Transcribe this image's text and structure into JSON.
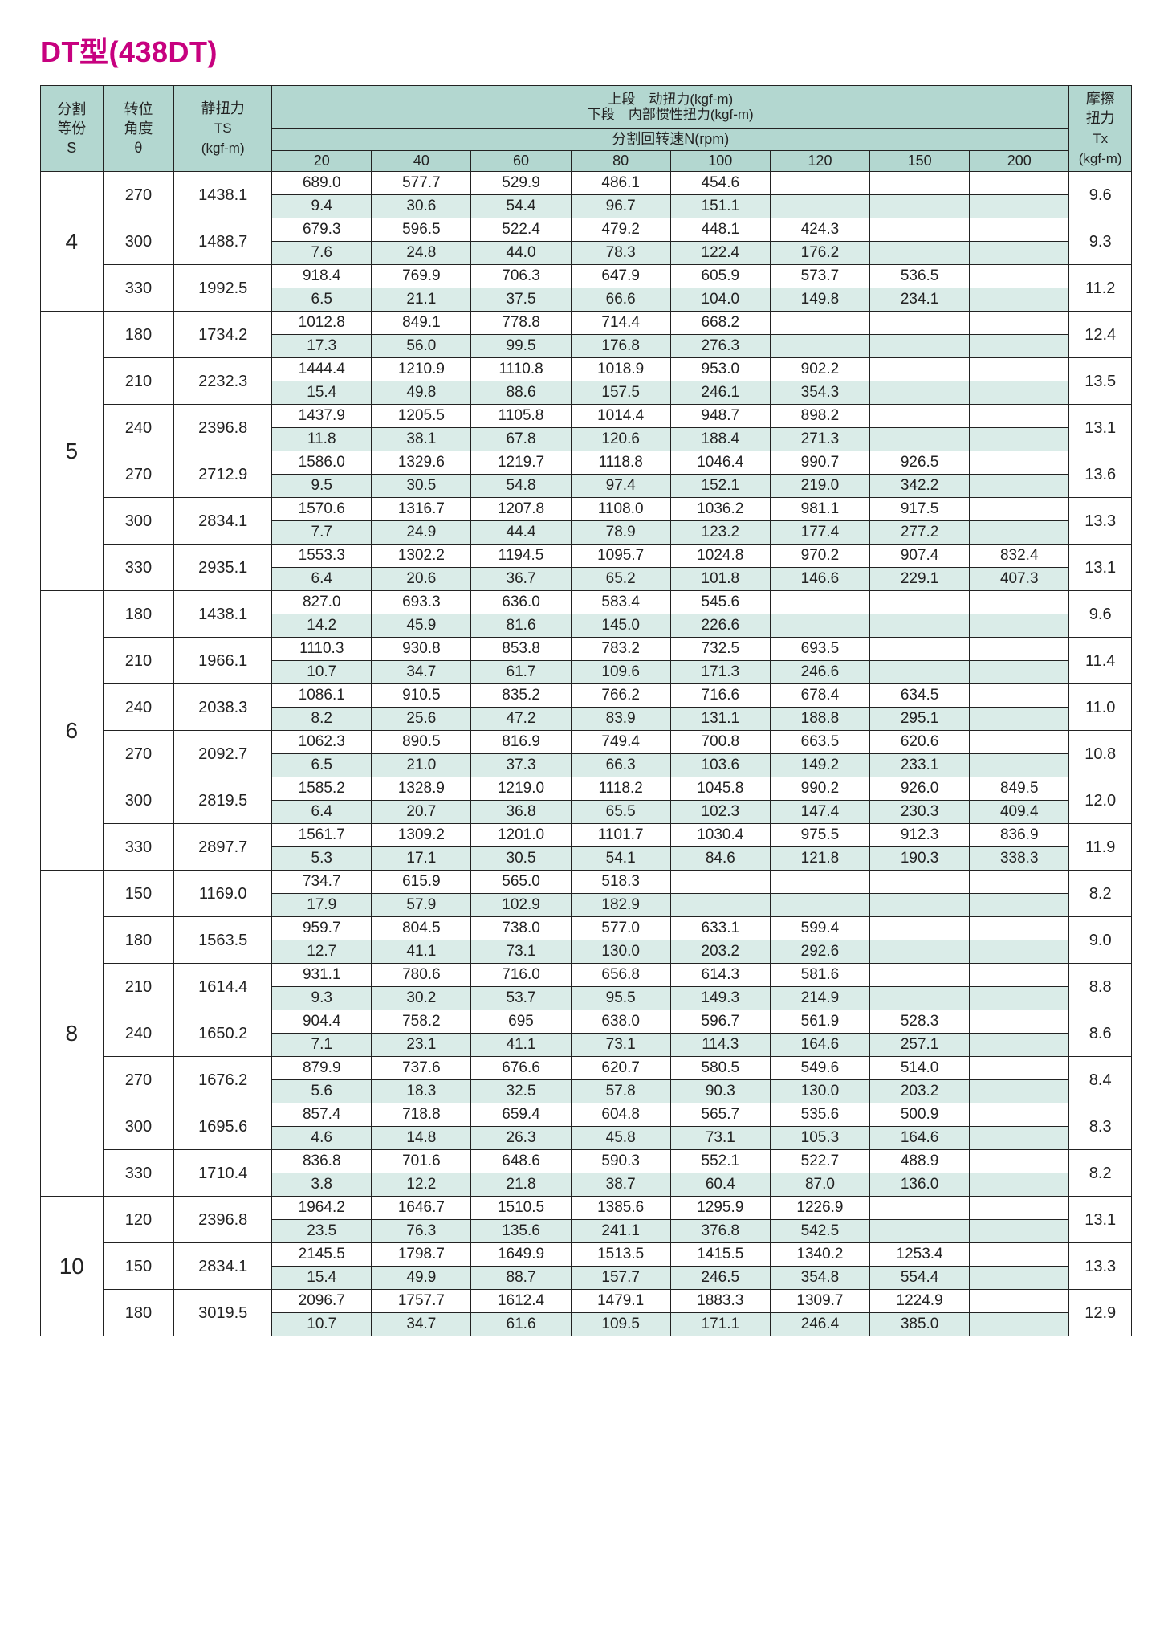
{
  "title": "DT型(438DT)",
  "colors": {
    "header_bg": "#b3d7d0",
    "mint_bg": "#daece8",
    "white_bg": "#ffffff",
    "border": "#222222",
    "title": "#c7017f"
  },
  "header": {
    "s_label_1": "分割",
    "s_label_2": "等份",
    "s_label_3": "S",
    "theta_label_1": "转位",
    "theta_label_2": "角度",
    "theta_label_3": "θ",
    "ts_label_1": "静扭力",
    "ts_label_2": "TS",
    "ts_label_3": "(kgf-m)",
    "top_row_upper": "上段　动扭力(kgf-m)",
    "top_row_lower": "下段　内部惯性扭力(kgf-m)",
    "rpm_label": "分割回转速N(rpm)",
    "rpm_cols": [
      "20",
      "40",
      "60",
      "80",
      "100",
      "120",
      "150",
      "200"
    ],
    "tx_label_1": "摩擦",
    "tx_label_2": "扭力",
    "tx_label_3": "Tx",
    "tx_label_4": "(kgf-m)"
  },
  "groups": [
    {
      "s": "4",
      "rows": [
        {
          "theta": "270",
          "ts": "1438.1",
          "tx": "9.6",
          "upper": [
            "689.0",
            "577.7",
            "529.9",
            "486.1",
            "454.6",
            "",
            "",
            ""
          ],
          "lower": [
            "9.4",
            "30.6",
            "54.4",
            "96.7",
            "151.1",
            "",
            "",
            ""
          ]
        },
        {
          "theta": "300",
          "ts": "1488.7",
          "tx": "9.3",
          "upper": [
            "679.3",
            "596.5",
            "522.4",
            "479.2",
            "448.1",
            "424.3",
            "",
            ""
          ],
          "lower": [
            "7.6",
            "24.8",
            "44.0",
            "78.3",
            "122.4",
            "176.2",
            "",
            ""
          ]
        },
        {
          "theta": "330",
          "ts": "1992.5",
          "tx": "11.2",
          "upper": [
            "918.4",
            "769.9",
            "706.3",
            "647.9",
            "605.9",
            "573.7",
            "536.5",
            ""
          ],
          "lower": [
            "6.5",
            "21.1",
            "37.5",
            "66.6",
            "104.0",
            "149.8",
            "234.1",
            ""
          ]
        }
      ]
    },
    {
      "s": "5",
      "rows": [
        {
          "theta": "180",
          "ts": "1734.2",
          "tx": "12.4",
          "upper": [
            "1012.8",
            "849.1",
            "778.8",
            "714.4",
            "668.2",
            "",
            "",
            ""
          ],
          "lower": [
            "17.3",
            "56.0",
            "99.5",
            "176.8",
            "276.3",
            "",
            "",
            ""
          ]
        },
        {
          "theta": "210",
          "ts": "2232.3",
          "tx": "13.5",
          "upper": [
            "1444.4",
            "1210.9",
            "1110.8",
            "1018.9",
            "953.0",
            "902.2",
            "",
            ""
          ],
          "lower": [
            "15.4",
            "49.8",
            "88.6",
            "157.5",
            "246.1",
            "354.3",
            "",
            ""
          ]
        },
        {
          "theta": "240",
          "ts": "2396.8",
          "tx": "13.1",
          "upper": [
            "1437.9",
            "1205.5",
            "1105.8",
            "1014.4",
            "948.7",
            "898.2",
            "",
            ""
          ],
          "lower": [
            "11.8",
            "38.1",
            "67.8",
            "120.6",
            "188.4",
            "271.3",
            "",
            ""
          ]
        },
        {
          "theta": "270",
          "ts": "2712.9",
          "tx": "13.6",
          "upper": [
            "1586.0",
            "1329.6",
            "1219.7",
            "1118.8",
            "1046.4",
            "990.7",
            "926.5",
            ""
          ],
          "lower": [
            "9.5",
            "30.5",
            "54.8",
            "97.4",
            "152.1",
            "219.0",
            "342.2",
            ""
          ]
        },
        {
          "theta": "300",
          "ts": "2834.1",
          "tx": "13.3",
          "upper": [
            "1570.6",
            "1316.7",
            "1207.8",
            "1108.0",
            "1036.2",
            "981.1",
            "917.5",
            ""
          ],
          "lower": [
            "7.7",
            "24.9",
            "44.4",
            "78.9",
            "123.2",
            "177.4",
            "277.2",
            ""
          ]
        },
        {
          "theta": "330",
          "ts": "2935.1",
          "tx": "13.1",
          "upper": [
            "1553.3",
            "1302.2",
            "1194.5",
            "1095.7",
            "1024.8",
            "970.2",
            "907.4",
            "832.4"
          ],
          "lower": [
            "6.4",
            "20.6",
            "36.7",
            "65.2",
            "101.8",
            "146.6",
            "229.1",
            "407.3"
          ]
        }
      ]
    },
    {
      "s": "6",
      "rows": [
        {
          "theta": "180",
          "ts": "1438.1",
          "tx": "9.6",
          "upper": [
            "827.0",
            "693.3",
            "636.0",
            "583.4",
            "545.6",
            "",
            "",
            ""
          ],
          "lower": [
            "14.2",
            "45.9",
            "81.6",
            "145.0",
            "226.6",
            "",
            "",
            ""
          ]
        },
        {
          "theta": "210",
          "ts": "1966.1",
          "tx": "11.4",
          "upper": [
            "1110.3",
            "930.8",
            "853.8",
            "783.2",
            "732.5",
            "693.5",
            "",
            ""
          ],
          "lower": [
            "10.7",
            "34.7",
            "61.7",
            "109.6",
            "171.3",
            "246.6",
            "",
            ""
          ]
        },
        {
          "theta": "240",
          "ts": "2038.3",
          "tx": "11.0",
          "upper": [
            "1086.1",
            "910.5",
            "835.2",
            "766.2",
            "716.6",
            "678.4",
            "634.5",
            ""
          ],
          "lower": [
            "8.2",
            "25.6",
            "47.2",
            "83.9",
            "131.1",
            "188.8",
            "295.1",
            ""
          ]
        },
        {
          "theta": "270",
          "ts": "2092.7",
          "tx": "10.8",
          "upper": [
            "1062.3",
            "890.5",
            "816.9",
            "749.4",
            "700.8",
            "663.5",
            "620.6",
            ""
          ],
          "lower": [
            "6.5",
            "21.0",
            "37.3",
            "66.3",
            "103.6",
            "149.2",
            "233.1",
            ""
          ]
        },
        {
          "theta": "300",
          "ts": "2819.5",
          "tx": "12.0",
          "upper": [
            "1585.2",
            "1328.9",
            "1219.0",
            "1118.2",
            "1045.8",
            "990.2",
            "926.0",
            "849.5"
          ],
          "lower": [
            "6.4",
            "20.7",
            "36.8",
            "65.5",
            "102.3",
            "147.4",
            "230.3",
            "409.4"
          ]
        },
        {
          "theta": "330",
          "ts": "2897.7",
          "tx": "11.9",
          "upper": [
            "1561.7",
            "1309.2",
            "1201.0",
            "1101.7",
            "1030.4",
            "975.5",
            "912.3",
            "836.9"
          ],
          "lower": [
            "5.3",
            "17.1",
            "30.5",
            "54.1",
            "84.6",
            "121.8",
            "190.3",
            "338.3"
          ]
        }
      ]
    },
    {
      "s": "8",
      "rows": [
        {
          "theta": "150",
          "ts": "1169.0",
          "tx": "8.2",
          "upper": [
            "734.7",
            "615.9",
            "565.0",
            "518.3",
            "",
            "",
            "",
            ""
          ],
          "lower": [
            "17.9",
            "57.9",
            "102.9",
            "182.9",
            "",
            "",
            "",
            ""
          ]
        },
        {
          "theta": "180",
          "ts": "1563.5",
          "tx": "9.0",
          "upper": [
            "959.7",
            "804.5",
            "738.0",
            "577.0",
            "633.1",
            "599.4",
            "",
            ""
          ],
          "lower": [
            "12.7",
            "41.1",
            "73.1",
            "130.0",
            "203.2",
            "292.6",
            "",
            ""
          ]
        },
        {
          "theta": "210",
          "ts": "1614.4",
          "tx": "8.8",
          "upper": [
            "931.1",
            "780.6",
            "716.0",
            "656.8",
            "614.3",
            "581.6",
            "",
            ""
          ],
          "lower": [
            "9.3",
            "30.2",
            "53.7",
            "95.5",
            "149.3",
            "214.9",
            "",
            ""
          ]
        },
        {
          "theta": "240",
          "ts": "1650.2",
          "tx": "8.6",
          "upper": [
            "904.4",
            "758.2",
            "695",
            "638.0",
            "596.7",
            "561.9",
            "528.3",
            ""
          ],
          "lower": [
            "7.1",
            "23.1",
            "41.1",
            "73.1",
            "114.3",
            "164.6",
            "257.1",
            ""
          ]
        },
        {
          "theta": "270",
          "ts": "1676.2",
          "tx": "8.4",
          "upper": [
            "879.9",
            "737.6",
            "676.6",
            "620.7",
            "580.5",
            "549.6",
            "514.0",
            ""
          ],
          "lower": [
            "5.6",
            "18.3",
            "32.5",
            "57.8",
            "90.3",
            "130.0",
            "203.2",
            ""
          ]
        },
        {
          "theta": "300",
          "ts": "1695.6",
          "tx": "8.3",
          "upper": [
            "857.4",
            "718.8",
            "659.4",
            "604.8",
            "565.7",
            "535.6",
            "500.9",
            ""
          ],
          "lower": [
            "4.6",
            "14.8",
            "26.3",
            "45.8",
            "73.1",
            "105.3",
            "164.6",
            ""
          ]
        },
        {
          "theta": "330",
          "ts": "1710.4",
          "tx": "8.2",
          "upper": [
            "836.8",
            "701.6",
            "648.6",
            "590.3",
            "552.1",
            "522.7",
            "488.9",
            ""
          ],
          "lower": [
            "3.8",
            "12.2",
            "21.8",
            "38.7",
            "60.4",
            "87.0",
            "136.0",
            ""
          ]
        }
      ]
    },
    {
      "s": "10",
      "rows": [
        {
          "theta": "120",
          "ts": "2396.8",
          "tx": "13.1",
          "upper": [
            "1964.2",
            "1646.7",
            "1510.5",
            "1385.6",
            "1295.9",
            "1226.9",
            "",
            ""
          ],
          "lower": [
            "23.5",
            "76.3",
            "135.6",
            "241.1",
            "376.8",
            "542.5",
            "",
            ""
          ]
        },
        {
          "theta": "150",
          "ts": "2834.1",
          "tx": "13.3",
          "upper": [
            "2145.5",
            "1798.7",
            "1649.9",
            "1513.5",
            "1415.5",
            "1340.2",
            "1253.4",
            ""
          ],
          "lower": [
            "15.4",
            "49.9",
            "88.7",
            "157.7",
            "246.5",
            "354.8",
            "554.4",
            ""
          ]
        },
        {
          "theta": "180",
          "ts": "3019.5",
          "tx": "12.9",
          "upper": [
            "2096.7",
            "1757.7",
            "1612.4",
            "1479.1",
            "1883.3",
            "1309.7",
            "1224.9",
            ""
          ],
          "lower": [
            "10.7",
            "34.7",
            "61.6",
            "109.5",
            "171.1",
            "246.4",
            "385.0",
            ""
          ]
        }
      ]
    }
  ]
}
